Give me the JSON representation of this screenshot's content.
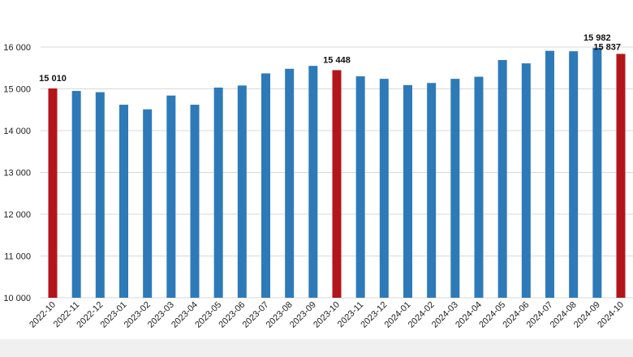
{
  "chart_data": {
    "type": "bar",
    "title": "",
    "xlabel": "",
    "ylabel": "",
    "ylim": [
      10000,
      16000
    ],
    "yticks": [
      10000,
      11000,
      12000,
      13000,
      14000,
      15000,
      16000
    ],
    "ytick_labels": [
      "10 000",
      "11 000",
      "12 000",
      "13 000",
      "14 000",
      "15 000",
      "16 000"
    ],
    "grid": true,
    "legend": "none",
    "categories": [
      "2022-10",
      "2022-11",
      "2022-12",
      "2023-01",
      "2023-02",
      "2023-03",
      "2023-04",
      "2023-05",
      "2023-06",
      "2023-07",
      "2023-08",
      "2023-09",
      "2023-10",
      "2023-11",
      "2023-12",
      "2024-01",
      "2024-02",
      "2024-03",
      "2024-04",
      "2024-05",
      "2024-06",
      "2024-07",
      "2024-08",
      "2024-09",
      "2024-10"
    ],
    "values": [
      15010,
      14950,
      14920,
      14620,
      14510,
      14840,
      14620,
      15030,
      15080,
      15370,
      15480,
      15550,
      15448,
      15300,
      15240,
      15090,
      15140,
      15240,
      15290,
      15690,
      15610,
      15910,
      15900,
      15982,
      15837
    ],
    "highlight": [
      0,
      12,
      24
    ],
    "colors": {
      "default": "#2e7ab8",
      "highlight": "#b2161b"
    },
    "data_labels": [
      {
        "index": 0,
        "text": "15 010"
      },
      {
        "index": 12,
        "text": "15 448"
      },
      {
        "index": 23,
        "text": "15 982"
      },
      {
        "index": 24,
        "text": "15 837"
      }
    ]
  }
}
